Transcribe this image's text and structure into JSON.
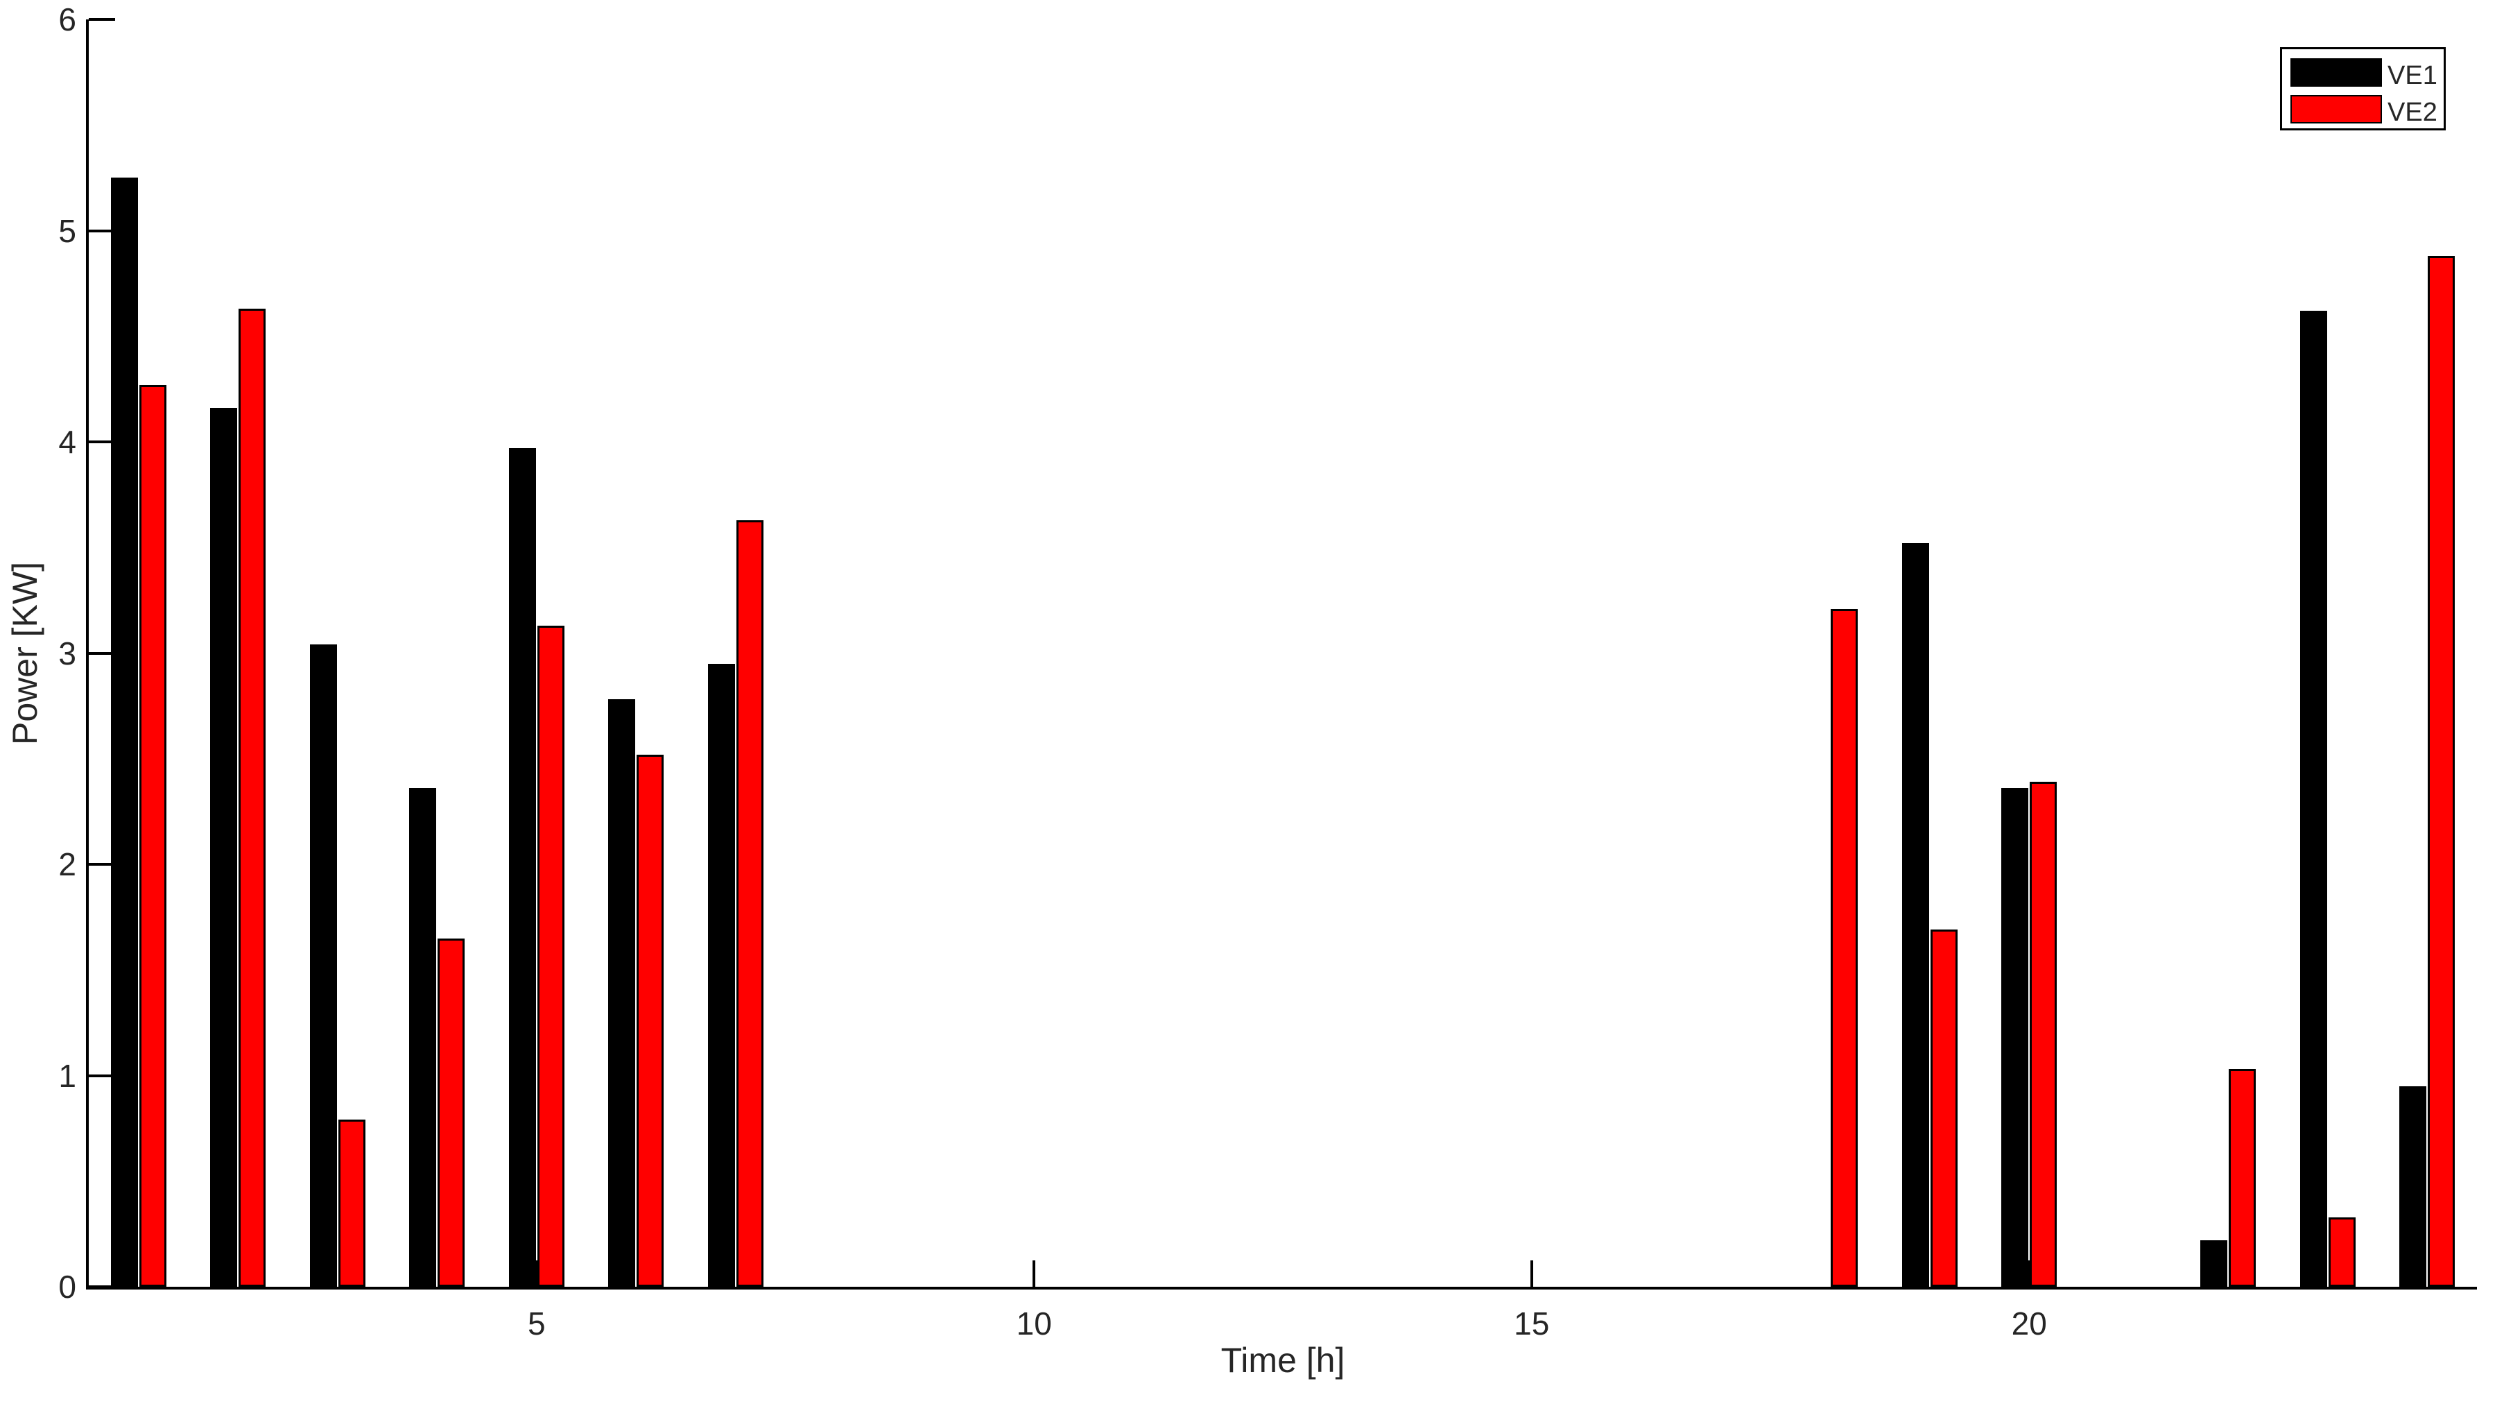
{
  "chart_data": {
    "type": "bar",
    "title": "",
    "xlabel": "Time [h]",
    "ylabel": "Power [KW]",
    "x": [
      1,
      2,
      3,
      4,
      5,
      6,
      7,
      8,
      9,
      10,
      11,
      12,
      13,
      14,
      15,
      16,
      17,
      18,
      19,
      20,
      21,
      22,
      23,
      24
    ],
    "series": [
      {
        "name": "VE1",
        "color": "#000000",
        "values": [
          5.25,
          4.16,
          3.04,
          2.36,
          3.97,
          2.78,
          2.95,
          0,
          0,
          0,
          0,
          0,
          0,
          0,
          0,
          0,
          0,
          0,
          3.52,
          2.36,
          0,
          0.22,
          4.62,
          0.95
        ]
      },
      {
        "name": "VE2",
        "color": "#ff0000",
        "values": [
          4.27,
          4.63,
          0.79,
          1.65,
          3.13,
          2.52,
          3.63,
          0,
          0,
          0,
          0,
          0,
          0,
          0,
          0,
          0,
          0,
          3.21,
          1.69,
          2.39,
          0,
          1.03,
          0.33,
          4.88
        ]
      }
    ],
    "xlim": [
      0.5,
      24.5
    ],
    "ylim": [
      0,
      6
    ],
    "xticks": [
      5,
      10,
      15,
      20
    ],
    "xtick_labels": [
      "5",
      "10",
      "15",
      "20"
    ],
    "yticks": [
      0,
      1,
      2,
      3,
      4,
      5,
      6
    ],
    "ytick_labels": [
      "0",
      "1",
      "2",
      "3",
      "4",
      "5",
      "6"
    ],
    "grid": false,
    "legend_position": "top-right",
    "axis_color": "#000000",
    "text_color": "#262626",
    "bar_outline": "#000000",
    "background": "#ffffff"
  },
  "legend": {
    "items": [
      {
        "label": "VE1",
        "color": "#000000"
      },
      {
        "label": "VE2",
        "color": "#ff0000"
      }
    ]
  }
}
